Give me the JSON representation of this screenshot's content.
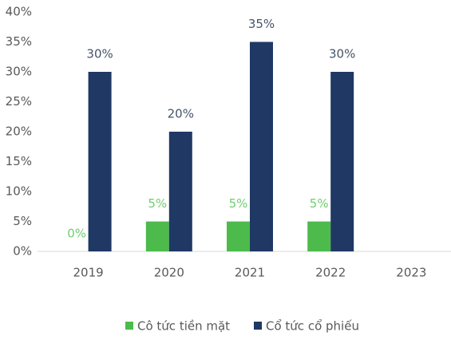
{
  "chart_data": {
    "type": "bar",
    "categories": [
      "2019",
      "2020",
      "2021",
      "2022",
      "2023"
    ],
    "series": [
      {
        "name": "Cô tức tiền mặt",
        "color": "#4cbb4c",
        "label_color": "#6fcf6f",
        "values": [
          0,
          5,
          5,
          5,
          null
        ],
        "value_labels": [
          "0%",
          "5%",
          "5%",
          "5%",
          null
        ]
      },
      {
        "name": "Cổ tức cổ phiếu",
        "color": "#1f3864",
        "label_color": "#44546a",
        "values": [
          30,
          20,
          35,
          30,
          null
        ],
        "value_labels": [
          "30%",
          "20%",
          "35%",
          "30%",
          null
        ]
      }
    ],
    "ylim": [
      0,
      40
    ],
    "yticks": [
      {
        "value": 0,
        "label": "0%"
      },
      {
        "value": 5,
        "label": "5%"
      },
      {
        "value": 10,
        "label": "10%"
      },
      {
        "value": 15,
        "label": "15%"
      },
      {
        "value": 20,
        "label": "20%"
      },
      {
        "value": 25,
        "label": "25%"
      },
      {
        "value": 30,
        "label": "30%"
      },
      {
        "value": 35,
        "label": "35%"
      },
      {
        "value": 40,
        "label": "40%"
      }
    ],
    "grid": false,
    "legend": "bottom"
  }
}
